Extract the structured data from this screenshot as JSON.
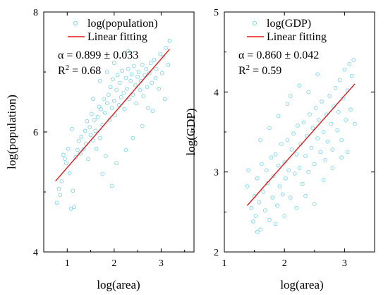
{
  "chart_data": [
    {
      "type": "scatter",
      "panel": "left",
      "xlabel": "log(area)",
      "ylabel": "log(population)",
      "xlim": [
        0.5,
        3.7
      ],
      "ylim": [
        4,
        8
      ],
      "x_ticks": [
        "1",
        "2",
        "3"
      ],
      "y_ticks": [
        "4",
        "6",
        "8"
      ],
      "x_tick_values": [
        1,
        2,
        3
      ],
      "y_tick_values": [
        4,
        6,
        8
      ],
      "legend": {
        "location": "top-right",
        "scatter_label": "log(population)",
        "line_label": "Linear fitting"
      },
      "annotations": {
        "alpha": "α = 0.899 ± 0.033",
        "r2_prefix": "R",
        "r2_sup": "2",
        "r2_suffix": " = 0.68"
      },
      "fit_line": {
        "color": "#e31a1c",
        "x": [
          0.75,
          3.18
        ],
        "y": [
          5.18,
          7.38
        ]
      },
      "marker_color": "#7fd4ea",
      "series": [
        {
          "name": "log(population)",
          "points": [
            [
              0.78,
              4.82
            ],
            [
              0.82,
              5.05
            ],
            [
              0.85,
              4.95
            ],
            [
              0.88,
              5.18
            ],
            [
              0.92,
              5.62
            ],
            [
              0.95,
              5.55
            ],
            [
              0.98,
              5.48
            ],
            [
              1.02,
              5.72
            ],
            [
              1.05,
              5.31
            ],
            [
              1.08,
              4.72
            ],
            [
              1.1,
              6.05
            ],
            [
              1.12,
              5.02
            ],
            [
              1.15,
              4.75
            ],
            [
              1.18,
              5.58
            ],
            [
              1.22,
              5.7
            ],
            [
              1.25,
              5.85
            ],
            [
              1.28,
              5.64
            ],
            [
              1.3,
              5.92
            ],
            [
              1.35,
              5.71
            ],
            [
              1.38,
              6.02
            ],
            [
              1.4,
              5.8
            ],
            [
              1.42,
              6.18
            ],
            [
              1.45,
              5.55
            ],
            [
              1.48,
              6.08
            ],
            [
              1.5,
              5.95
            ],
            [
              1.52,
              6.3
            ],
            [
              1.55,
              5.86
            ],
            [
              1.58,
              6.2
            ],
            [
              1.6,
              6.02
            ],
            [
              1.62,
              5.72
            ],
            [
              1.65,
              6.25
            ],
            [
              1.68,
              6.42
            ],
            [
              1.7,
              5.9
            ],
            [
              1.72,
              6.38
            ],
            [
              1.75,
              6.12
            ],
            [
              1.78,
              6.55
            ],
            [
              1.8,
              6.32
            ],
            [
              1.82,
              5.6
            ],
            [
              1.85,
              6.48
            ],
            [
              1.88,
              6.62
            ],
            [
              1.9,
              6.2
            ],
            [
              1.92,
              6.75
            ],
            [
              1.95,
              6.4
            ],
            [
              1.97,
              6.88
            ],
            [
              2.0,
              6.52
            ],
            [
              2.02,
              6.28
            ],
            [
              2.05,
              6.7
            ],
            [
              2.07,
              6.95
            ],
            [
              2.1,
              6.45
            ],
            [
              2.12,
              6.82
            ],
            [
              2.15,
              6.58
            ],
            [
              2.17,
              7.02
            ],
            [
              2.2,
              6.65
            ],
            [
              2.22,
              6.38
            ],
            [
              2.25,
              6.9
            ],
            [
              2.27,
              6.72
            ],
            [
              2.3,
              7.05
            ],
            [
              2.32,
              6.55
            ],
            [
              2.35,
              6.85
            ],
            [
              2.37,
              6.96
            ],
            [
              2.4,
              6.62
            ],
            [
              2.42,
              7.1
            ],
            [
              2.45,
              6.78
            ],
            [
              2.47,
              6.48
            ],
            [
              2.5,
              6.92
            ],
            [
              2.52,
              7.0
            ],
            [
              2.55,
              6.7
            ],
            [
              2.57,
              6.85
            ],
            [
              2.6,
              7.12
            ],
            [
              2.62,
              6.6
            ],
            [
              2.65,
              6.95
            ],
            [
              2.68,
              7.05
            ],
            [
              2.7,
              6.75
            ],
            [
              2.72,
              6.4
            ],
            [
              2.75,
              6.98
            ],
            [
              2.78,
              7.15
            ],
            [
              2.8,
              6.82
            ],
            [
              2.85,
              7.2
            ],
            [
              2.88,
              6.9
            ],
            [
              2.9,
              7.05
            ],
            [
              2.95,
              6.72
            ],
            [
              2.98,
              7.3
            ],
            [
              3.02,
              6.98
            ],
            [
              3.05,
              7.25
            ],
            [
              3.08,
              6.55
            ],
            [
              3.1,
              7.4
            ],
            [
              3.15,
              7.12
            ],
            [
              3.18,
              7.52
            ],
            [
              1.95,
              5.1
            ],
            [
              2.05,
              5.48
            ],
            [
              1.75,
              5.3
            ],
            [
              2.25,
              5.7
            ],
            [
              2.4,
              5.9
            ],
            [
              2.6,
              6.1
            ],
            [
              2.82,
              6.35
            ],
            [
              1.55,
              6.55
            ],
            [
              1.7,
              6.85
            ],
            [
              2.0,
              7.15
            ],
            [
              2.3,
              7.35
            ],
            [
              1.85,
              7.0
            ]
          ]
        }
      ]
    },
    {
      "type": "scatter",
      "panel": "right",
      "xlabel": "log(area)",
      "ylabel": "log(GDP)",
      "xlim": [
        1,
        3.5
      ],
      "ylim": [
        2,
        5
      ],
      "x_ticks": [
        "1",
        "2",
        "3"
      ],
      "y_ticks": [
        "2",
        "3",
        "4",
        "5"
      ],
      "x_tick_values": [
        1,
        2,
        3
      ],
      "y_tick_values": [
        2,
        3,
        4,
        5
      ],
      "legend": {
        "location": "top-right",
        "scatter_label": "log(GDP)",
        "line_label": "Linear fitting"
      },
      "annotations": {
        "alpha": "α = 0.860 ± 0.042",
        "r2_prefix": "R",
        "r2_sup": "2",
        "r2_suffix": " = 0.59"
      },
      "fit_line": {
        "color": "#e31a1c",
        "x": [
          1.38,
          3.17
        ],
        "y": [
          2.58,
          4.1
        ]
      },
      "marker_color": "#7fd4ea",
      "series": [
        {
          "name": "log(GDP)",
          "points": [
            [
              1.38,
              2.82
            ],
            [
              1.4,
              3.02
            ],
            [
              1.45,
              2.55
            ],
            [
              1.48,
              2.38
            ],
            [
              1.5,
              2.7
            ],
            [
              1.52,
              2.45
            ],
            [
              1.55,
              2.92
            ],
            [
              1.58,
              2.62
            ],
            [
              1.6,
              2.28
            ],
            [
              1.62,
              3.1
            ],
            [
              1.65,
              2.75
            ],
            [
              1.68,
              2.52
            ],
            [
              1.7,
              3.02
            ],
            [
              1.72,
              2.86
            ],
            [
              1.75,
              2.4
            ],
            [
              1.78,
              3.18
            ],
            [
              1.8,
              2.68
            ],
            [
              1.82,
              2.95
            ],
            [
              1.85,
              3.22
            ],
            [
              1.88,
              2.58
            ],
            [
              1.9,
              3.08
            ],
            [
              1.92,
              2.82
            ],
            [
              1.95,
              3.35
            ],
            [
              1.97,
              2.72
            ],
            [
              2.0,
              3.12
            ],
            [
              2.02,
              2.92
            ],
            [
              2.05,
              3.4
            ],
            [
              2.07,
              3.02
            ],
            [
              2.1,
              2.68
            ],
            [
              2.12,
              3.28
            ],
            [
              2.15,
              3.48
            ],
            [
              2.17,
              2.98
            ],
            [
              2.2,
              3.22
            ],
            [
              2.22,
              3.58
            ],
            [
              2.25,
              3.05
            ],
            [
              2.27,
              3.35
            ],
            [
              2.3,
              2.85
            ],
            [
              2.32,
              3.62
            ],
            [
              2.35,
              3.2
            ],
            [
              2.37,
              3.45
            ],
            [
              2.4,
              3.0
            ],
            [
              2.42,
              3.72
            ],
            [
              2.45,
              3.3
            ],
            [
              2.47,
              3.55
            ],
            [
              2.5,
              3.1
            ],
            [
              2.52,
              3.8
            ],
            [
              2.55,
              3.42
            ],
            [
              2.57,
              3.65
            ],
            [
              2.6,
              3.25
            ],
            [
              2.62,
              3.88
            ],
            [
              2.65,
              3.5
            ],
            [
              2.68,
              3.15
            ],
            [
              2.7,
              3.72
            ],
            [
              2.72,
              3.38
            ],
            [
              2.75,
              3.95
            ],
            [
              2.78,
              3.6
            ],
            [
              2.8,
              3.28
            ],
            [
              2.82,
              3.82
            ],
            [
              2.85,
              4.05
            ],
            [
              2.88,
              3.52
            ],
            [
              2.9,
              3.75
            ],
            [
              2.92,
              4.15
            ],
            [
              2.95,
              3.4
            ],
            [
              2.98,
              3.92
            ],
            [
              3.0,
              4.28
            ],
            [
              3.02,
              3.65
            ],
            [
              3.05,
              4.02
            ],
            [
              3.08,
              4.35
            ],
            [
              3.1,
              3.78
            ],
            [
              3.12,
              4.2
            ],
            [
              3.15,
              4.4
            ],
            [
              3.17,
              3.6
            ],
            [
              1.6,
              3.4
            ],
            [
              1.75,
              3.55
            ],
            [
              1.9,
              3.7
            ],
            [
              2.05,
              3.85
            ],
            [
              2.2,
              2.55
            ],
            [
              2.35,
              2.7
            ],
            [
              2.5,
              2.6
            ],
            [
              2.65,
              2.9
            ],
            [
              2.8,
              3.05
            ],
            [
              2.95,
              3.18
            ],
            [
              3.05,
              3.25
            ],
            [
              1.55,
              2.25
            ],
            [
              1.85,
              2.35
            ],
            [
              2.0,
              2.45
            ],
            [
              2.1,
              3.95
            ],
            [
              2.25,
              4.08
            ],
            [
              2.4,
              4.0
            ],
            [
              2.55,
              4.22
            ]
          ]
        }
      ]
    }
  ]
}
